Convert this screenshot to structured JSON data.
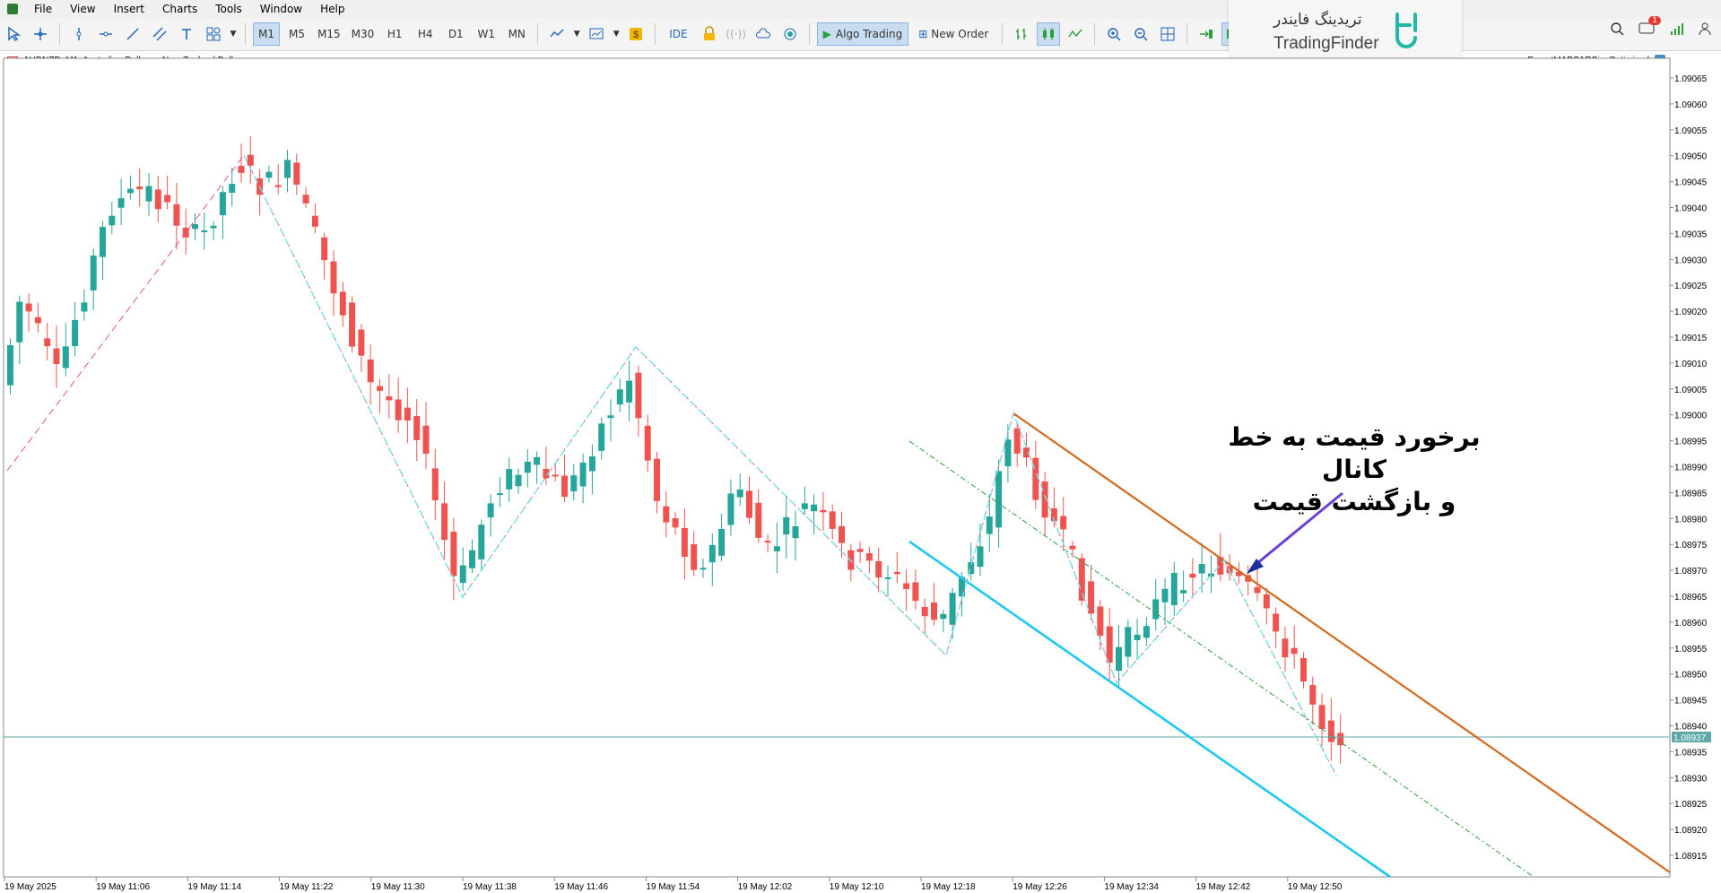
{
  "menu": {
    "items": [
      "File",
      "View",
      "Insert",
      "Charts",
      "Tools",
      "Window",
      "Help"
    ]
  },
  "toolbar": {
    "timeframes": [
      "M1",
      "M5",
      "M15",
      "M30",
      "H1",
      "H4",
      "D1",
      "W1",
      "MN"
    ],
    "active_timeframe": "M1",
    "ide_label": "IDE",
    "algo_label": "Algo Trading",
    "order_label": "New Order",
    "notifications_count": "1"
  },
  "watermark": {
    "brand_fa": "تریدینگ فایندر",
    "brand_en": "TradingFinder"
  },
  "chart": {
    "symbol_label": "AUDNZD, M1:  Australian Dollar vs New Zealand Dollar",
    "expert_label": "ExpertMAPSARSizeOptimized",
    "current_price": "1.08937",
    "price_labels": [
      "1.09065",
      "1.09060",
      "1.09055",
      "1.09050",
      "1.09045",
      "1.09040",
      "1.09035",
      "1.09030",
      "1.09025",
      "1.09020",
      "1.09015",
      "1.09010",
      "1.09005",
      "1.09000",
      "1.08995",
      "1.08990",
      "1.08985",
      "1.08980",
      "1.08975",
      "1.08970",
      "1.08965",
      "1.08960",
      "1.08955",
      "1.08950",
      "1.08945",
      "1.08940",
      "1.08935",
      "1.08930",
      "1.08925",
      "1.08920",
      "1.08915"
    ],
    "time_labels": [
      "19 May 2025",
      "19 May 11:06",
      "19 May 11:14",
      "19 May 11:22",
      "19 May 11:30",
      "19 May 11:38",
      "19 May 11:46",
      "19 May 11:54",
      "19 May 12:02",
      "19 May 12:10",
      "19 May 12:18",
      "19 May 12:26",
      "19 May 12:34",
      "19 May 12:42",
      "19 May 12:50"
    ],
    "colors": {
      "bull": "#26a69a",
      "bear": "#ef5350",
      "channel_upper": "#d2691e",
      "channel_lower": "#1ec8f0",
      "grid_text": "#000000"
    }
  },
  "annotation": {
    "line1": "برخورد قیمت به خط کانال",
    "line2": "و بازگشت قیمت"
  }
}
